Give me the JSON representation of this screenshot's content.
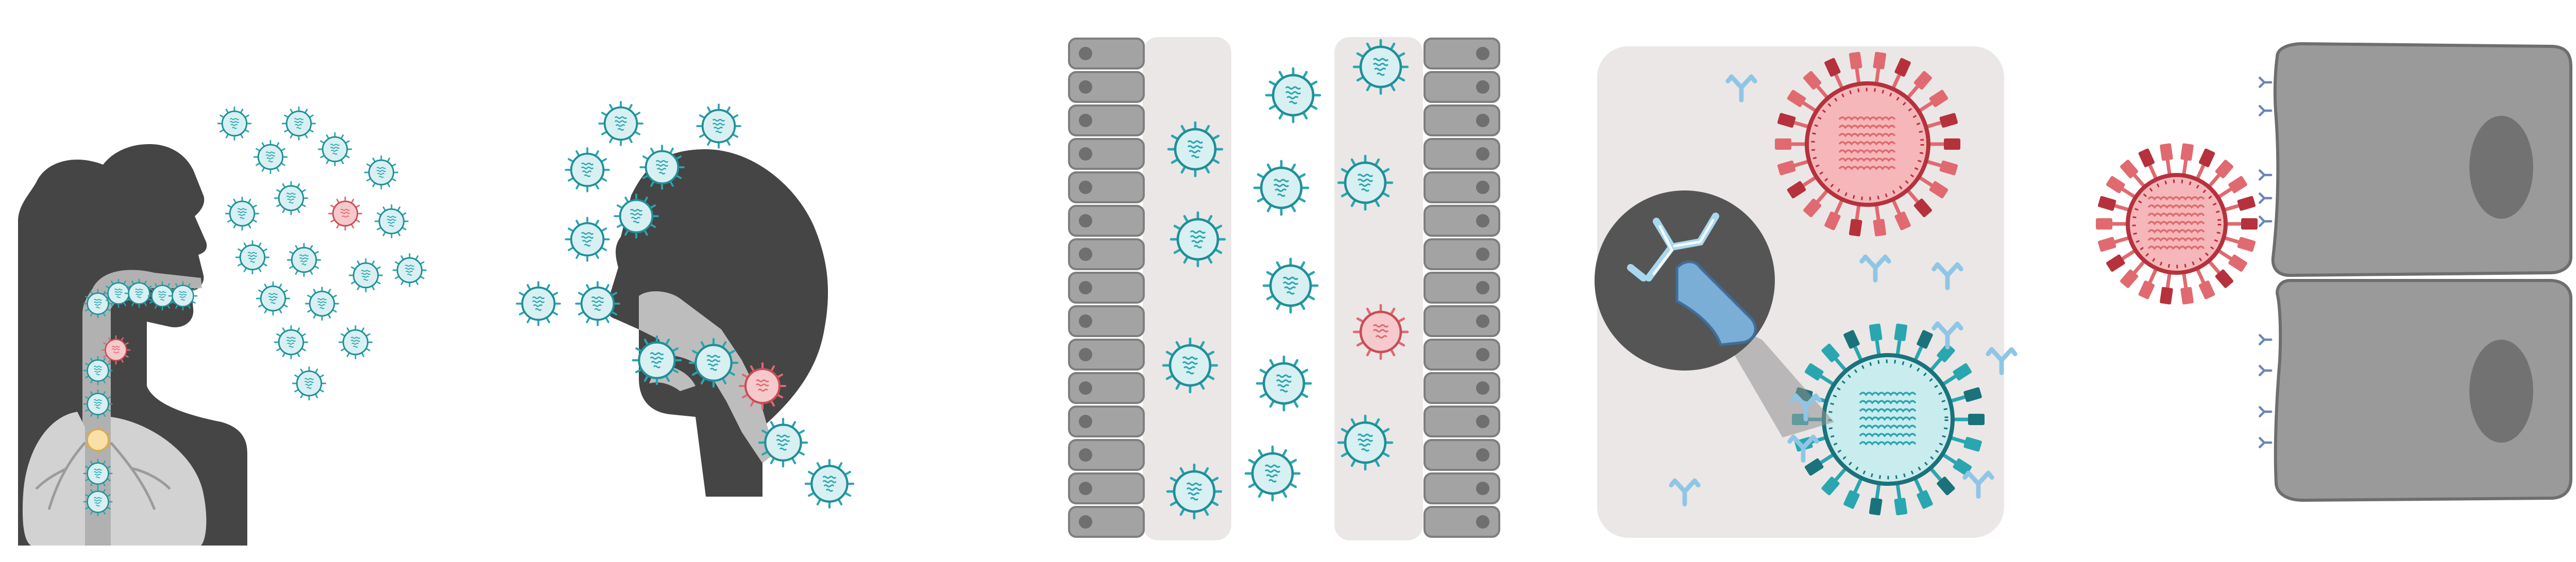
{
  "figure": {
    "panels": [
      {
        "id": "exhalation",
        "subject": "person-side-silhouette-exhaling"
      },
      {
        "id": "inhalation",
        "subject": "person-head-silhouette-inhaling"
      },
      {
        "id": "airway",
        "subject": "epithelial-airway-channel"
      },
      {
        "id": "antibody",
        "subject": "antibody-binding-virus-with-magnifier"
      },
      {
        "id": "cell-entry",
        "subject": "virus-docking-host-cells"
      }
    ],
    "colors": {
      "silhouette": "#454545",
      "airway_light": "#bdbdbd",
      "lung": "#d2d2d2",
      "virus_teal": "#2aa6b0",
      "virus_teal_light": "#d8f0f2",
      "virus_red": "#e06a70",
      "virus_red_light": "#f6c9cc",
      "virus_yellow": "#f2c26b",
      "cell_gray": "#9a9a9a",
      "cell_dark": "#6e6e6e",
      "panel_bg": "#ebe7e7",
      "antibody_blue": "#8fc6e6",
      "receptor_blue": "#6a86b6"
    }
  }
}
